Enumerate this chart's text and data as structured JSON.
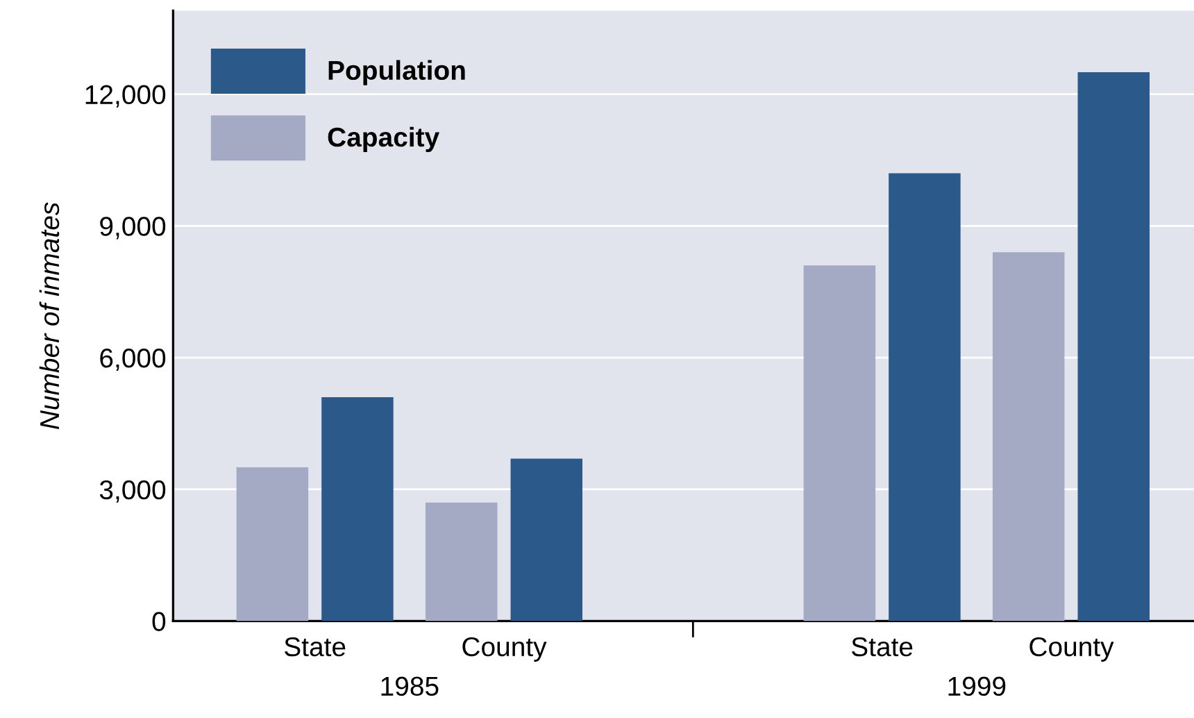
{
  "chart_data": {
    "type": "bar",
    "ylabel": "Number of inmates",
    "categories": [
      "State",
      "County",
      null,
      "State",
      "County"
    ],
    "series": [
      {
        "name": "Capacity",
        "color": "#a4a9c4",
        "values": [
          3500,
          2700,
          null,
          8100,
          8400
        ]
      },
      {
        "name": "Population",
        "color": "#2b5a8a",
        "values": [
          5100,
          3700,
          null,
          10200,
          12500
        ]
      }
    ],
    "annotations": [
      "1985",
      "1999"
    ],
    "ylim": [
      0,
      13900
    ],
    "yticks": [
      0,
      {
        "value": 3000,
        "label": "3,000"
      },
      {
        "value": 6000,
        "label": "6,000"
      },
      {
        "value": 9000,
        "label": "9,000"
      },
      {
        "value": 12000,
        "label": "12,000"
      }
    ],
    "grid": "y",
    "legend": "top left"
  }
}
